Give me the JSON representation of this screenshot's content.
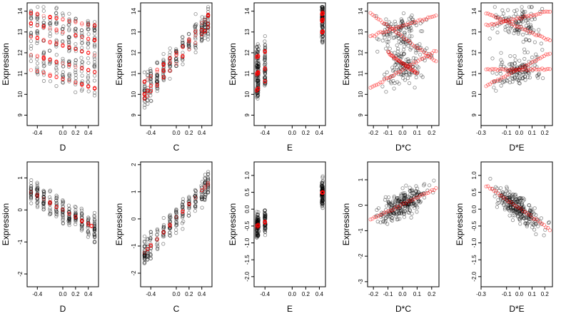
{
  "colors": {
    "observed": "#000000",
    "fitted": "#ff0000"
  },
  "chart_data": [
    {
      "type": "scatter",
      "xlabel": "D",
      "ylabel": "Expression",
      "xlim": [
        -0.56,
        0.56
      ],
      "ylim": [
        8.5,
        14.4
      ],
      "xticks": [
        -0.4,
        0,
        0.2,
        0.4
      ],
      "xtick_labels": [
        "-0.4",
        "0.0",
        "0.2",
        "0.4"
      ],
      "yticks": [
        9,
        10,
        11,
        12,
        13,
        14
      ],
      "ytick_labels": [
        "9",
        "10",
        "11",
        "12",
        "13",
        "14"
      ],
      "grid": false,
      "legend": "none",
      "observed": {
        "x_range": [
          -0.5,
          0.5
        ],
        "y_range": [
          8.7,
          14.2
        ],
        "x_levels": [
          -0.5,
          -0.4,
          -0.3,
          -0.2,
          -0.1,
          0,
          0.1,
          0.2,
          0.3,
          0.4,
          0.5
        ]
      },
      "fitted_lines": [
        {
          "x": [
            -0.5,
            0.5
          ],
          "y": [
            13.4,
            12.6
          ]
        },
        {
          "x": [
            -0.5,
            0.5
          ],
          "y": [
            12.8,
            11.9
          ]
        },
        {
          "x": [
            -0.5,
            0.5
          ],
          "y": [
            11.2,
            10.3
          ]
        },
        {
          "x": [
            -0.5,
            0.5
          ],
          "y": [
            11.9,
            11.1
          ]
        },
        {
          "x": [
            -0.5,
            0.5
          ],
          "y": [
            13.9,
            13.3
          ]
        }
      ]
    },
    {
      "type": "scatter",
      "xlabel": "C",
      "ylabel": "Expression",
      "xlim": [
        -0.56,
        0.56
      ],
      "ylim": [
        8.5,
        14.4
      ],
      "xticks": [
        -0.4,
        0,
        0.2,
        0.4
      ],
      "xtick_labels": [
        "-0.4",
        "0.0",
        "0.2",
        "0.4"
      ],
      "yticks": [
        9,
        10,
        11,
        12,
        13,
        14
      ],
      "ytick_labels": [
        "9",
        "10",
        "11",
        "12",
        "13",
        "14"
      ],
      "grid": false,
      "legend": "none",
      "observed": {
        "x_range": [
          -0.5,
          0.5
        ],
        "y_range": [
          9.2,
          14.2
        ],
        "x_levels": [
          -0.5,
          -0.45,
          -0.4,
          -0.3,
          -0.2,
          -0.1,
          0,
          0.1,
          0.2,
          0.3,
          0.4,
          0.45,
          0.5
        ]
      },
      "fitted_lines": [
        {
          "x": [
            -0.5,
            0.5
          ],
          "y": [
            10.0,
            13.8
          ]
        },
        {
          "x": [
            -0.5,
            0.5
          ],
          "y": [
            10.6,
            13.4
          ]
        },
        {
          "x": [
            -0.5,
            0.5
          ],
          "y": [
            9.8,
            13.2
          ]
        }
      ]
    },
    {
      "type": "scatter",
      "xlabel": "E",
      "ylabel": "Expression",
      "xlim": [
        -0.56,
        0.49
      ],
      "ylim": [
        8.5,
        14.4
      ],
      "xticks": [
        -0.4,
        0,
        0.2,
        0.4
      ],
      "xtick_labels": [
        "-0.4",
        "0.0",
        "0.2",
        "0.4"
      ],
      "yticks": [
        9,
        10,
        11,
        12,
        13,
        14
      ],
      "ytick_labels": [
        "9",
        "10",
        "11",
        "12",
        "13",
        "14"
      ],
      "grid": false,
      "legend": "none",
      "observed": {
        "x_range": [
          -0.52,
          0.45
        ],
        "y_range": [
          8.8,
          14.2
        ],
        "x_levels": [
          -0.52,
          -0.5,
          -0.4,
          0.44,
          0.45
        ]
      },
      "fitted_lines": [
        {
          "x": [
            -0.52,
            0.45
          ],
          "y": [
            10.2,
            13.6
          ]
        },
        {
          "x": [
            -0.52,
            0.45
          ],
          "y": [
            11.0,
            13.0
          ]
        },
        {
          "x": [
            -0.52,
            0.45
          ],
          "y": [
            11.8,
            13.9
          ]
        }
      ]
    },
    {
      "type": "scatter",
      "xlabel": "D*C",
      "ylabel": "Expression",
      "xlim": [
        -0.24,
        0.25
      ],
      "ylim": [
        8.5,
        14.4
      ],
      "xticks": [
        -0.2,
        -0.1,
        0,
        0.1,
        0.2
      ],
      "xtick_labels": [
        "-0.2",
        "-0.1",
        "0.0",
        "0.1",
        "0.2"
      ],
      "yticks": [
        9,
        10,
        11,
        12,
        13,
        14
      ],
      "ytick_labels": [
        "9",
        "10",
        "11",
        "12",
        "13",
        "14"
      ],
      "grid": false,
      "legend": "none",
      "observed": {
        "x_range": [
          -0.22,
          0.23
        ],
        "y_range": [
          8.7,
          14.2
        ],
        "x_levels": []
      },
      "fitted_lines": [
        {
          "x": [
            -0.22,
            0.23
          ],
          "y": [
            13.9,
            11.6
          ]
        },
        {
          "x": [
            -0.22,
            0.23
          ],
          "y": [
            10.3,
            12.1
          ]
        },
        {
          "x": [
            -0.22,
            0.23
          ],
          "y": [
            12.8,
            13.8
          ]
        },
        {
          "x": [
            -0.1,
            0.1
          ],
          "y": [
            12.0,
            11.0
          ]
        }
      ]
    },
    {
      "type": "scatter",
      "xlabel": "D*E",
      "ylabel": "Expression",
      "xlim": [
        -0.3,
        0.26
      ],
      "ylim": [
        8.5,
        14.4
      ],
      "xticks": [
        -0.3,
        -0.1,
        0,
        0.1,
        0.2
      ],
      "xtick_labels": [
        "-0.3",
        "-0.1",
        "0.0",
        "0.1",
        "0.2"
      ],
      "yticks": [
        9,
        10,
        11,
        12,
        13,
        14
      ],
      "ytick_labels": [
        "9",
        "10",
        "11",
        "12",
        "13",
        "14"
      ],
      "grid": false,
      "legend": "none",
      "observed": {
        "x_range": [
          -0.26,
          0.24
        ],
        "y_range": [
          8.8,
          14.2
        ],
        "x_levels": []
      },
      "fitted_lines": [
        {
          "x": [
            -0.26,
            0.24
          ],
          "y": [
            13.9,
            12.6
          ]
        },
        {
          "x": [
            -0.26,
            0.24
          ],
          "y": [
            10.4,
            12.0
          ]
        },
        {
          "x": [
            -0.26,
            0.24
          ],
          "y": [
            13.3,
            14.0
          ]
        },
        {
          "x": [
            -0.26,
            0.24
          ],
          "y": [
            11.2,
            11.2
          ]
        }
      ]
    },
    {
      "type": "scatter",
      "xlabel": "D",
      "ylabel": "Expression",
      "xlim": [
        -0.56,
        0.56
      ],
      "ylim": [
        -2.4,
        1.5
      ],
      "xticks": [
        -0.4,
        0,
        0.2,
        0.4
      ],
      "xtick_labels": [
        "-0.4",
        "0.0",
        "0.2",
        "0.4"
      ],
      "yticks": [
        -2,
        -1,
        0,
        1
      ],
      "ytick_labels": [
        "-2",
        "-1",
        "0",
        "1"
      ],
      "grid": false,
      "legend": "none",
      "observed": {
        "x_range": [
          -0.5,
          0.5
        ],
        "y_range": [
          -2.2,
          1.3
        ],
        "x_levels": [
          -0.5,
          -0.4,
          -0.3,
          -0.2,
          -0.1,
          0,
          0.1,
          0.2,
          0.3,
          0.4,
          0.5
        ]
      },
      "fitted_lines": [
        {
          "x": [
            -0.5,
            0.45
          ],
          "y": [
            0.55,
            -0.5
          ]
        }
      ]
    },
    {
      "type": "scatter",
      "xlabel": "C",
      "ylabel": "Expression",
      "xlim": [
        -0.56,
        0.56
      ],
      "ylim": [
        -2.5,
        2.1
      ],
      "xticks": [
        -0.4,
        0,
        0.2,
        0.4
      ],
      "xtick_labels": [
        "-0.4",
        "0.0",
        "0.2",
        "0.4"
      ],
      "yticks": [
        -2,
        -1,
        0,
        1,
        2
      ],
      "ytick_labels": [
        "-2",
        "-1",
        "0",
        "1",
        "2"
      ],
      "grid": false,
      "legend": "none",
      "observed": {
        "x_range": [
          -0.5,
          0.5
        ],
        "y_range": [
          -2.3,
          2.0
        ],
        "x_levels": [
          -0.5,
          -0.45,
          -0.4,
          -0.3,
          -0.2,
          -0.1,
          0,
          0.1,
          0.2,
          0.3,
          0.4,
          0.45,
          0.5
        ]
      },
      "fitted_lines": [
        {
          "x": [
            -0.5,
            0.5
          ],
          "y": [
            -1.25,
            1.3
          ]
        }
      ]
    },
    {
      "type": "scatter",
      "xlabel": "E",
      "ylabel": "Expression",
      "xlim": [
        -0.56,
        0.49
      ],
      "ylim": [
        -2.3,
        1.4
      ],
      "xticks": [
        -0.4,
        0,
        0.2,
        0.4
      ],
      "xtick_labels": [
        "-0.4",
        "0.0",
        "0.2",
        "0.4"
      ],
      "yticks": [
        -2.0,
        -1.5,
        -1.0,
        -0.5,
        0,
        0.5,
        1.0
      ],
      "ytick_labels": [
        "-2.0",
        "-1.5",
        "-1.0",
        "-0.5",
        "0.0",
        "0.5",
        "1.0"
      ],
      "grid": false,
      "legend": "none",
      "observed": {
        "x_range": [
          -0.52,
          0.45
        ],
        "y_range": [
          -2.1,
          1.3
        ],
        "x_levels": [
          -0.52,
          -0.5,
          -0.4,
          0.44,
          0.45
        ]
      },
      "fitted_lines": [
        {
          "x": [
            -0.52,
            0.45
          ],
          "y": [
            -0.5,
            0.5
          ]
        }
      ]
    },
    {
      "type": "scatter",
      "xlabel": "D*C",
      "ylabel": "Expression",
      "xlim": [
        -0.24,
        0.25
      ],
      "ylim": [
        -3.2,
        1.7
      ],
      "xticks": [
        -0.2,
        -0.1,
        0,
        0.1,
        0.2
      ],
      "xtick_labels": [
        "-0.2",
        "-0.1",
        "0.0",
        "0.1",
        "0.2"
      ],
      "yticks": [
        -3,
        -2,
        -1,
        0,
        1
      ],
      "ytick_labels": [
        "-3",
        "-2",
        "-1",
        "0",
        "1"
      ],
      "grid": false,
      "legend": "none",
      "observed": {
        "x_range": [
          -0.22,
          0.23
        ],
        "y_range": [
          -3.0,
          1.5
        ],
        "x_levels": []
      },
      "fitted_lines": [
        {
          "x": [
            -0.22,
            0.23
          ],
          "y": [
            -0.55,
            0.65
          ]
        }
      ]
    },
    {
      "type": "scatter",
      "xlabel": "D*E",
      "ylabel": "Expression",
      "xlim": [
        -0.3,
        0.26
      ],
      "ylim": [
        -2.3,
        1.4
      ],
      "xticks": [
        -0.3,
        -0.1,
        0,
        0.1,
        0.2
      ],
      "xtick_labels": [
        "-0.3",
        "-0.1",
        "0.0",
        "0.1",
        "0.2"
      ],
      "yticks": [
        -2.0,
        -1.5,
        -1.0,
        -0.5,
        0,
        0.5,
        1.0
      ],
      "ytick_labels": [
        "-2.0",
        "-1.5",
        "-1.0",
        "-0.5",
        "0.0",
        "0.5",
        "1.0"
      ],
      "grid": false,
      "legend": "none",
      "observed": {
        "x_range": [
          -0.26,
          0.24
        ],
        "y_range": [
          -2.1,
          1.3
        ],
        "x_levels": []
      },
      "fitted_lines": [
        {
          "x": [
            -0.26,
            0.24
          ],
          "y": [
            0.7,
            -0.6
          ]
        }
      ]
    }
  ]
}
